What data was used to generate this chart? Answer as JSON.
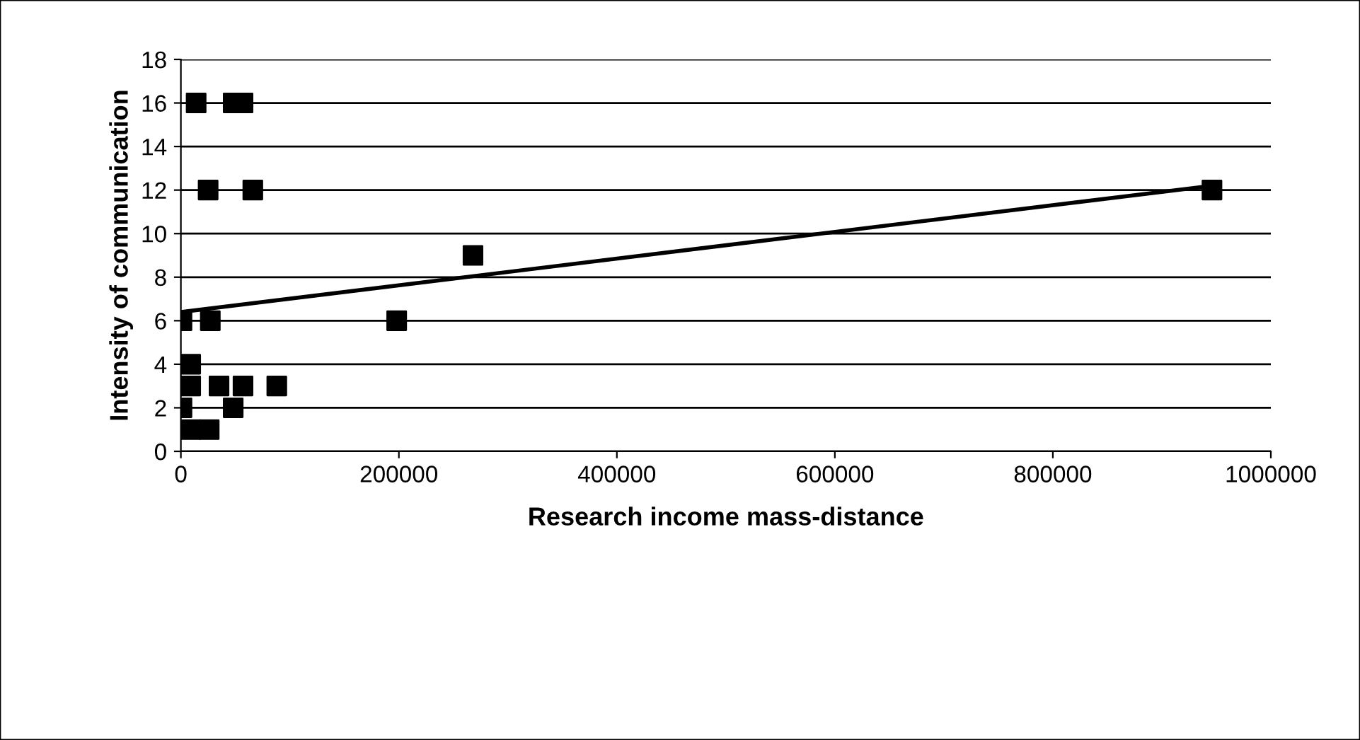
{
  "chart_data": {
    "type": "scatter",
    "xlabel": "Research income mass-distance",
    "ylabel": "Intensity of communication",
    "xlim": [
      0,
      1000000
    ],
    "xticks": [
      0,
      200000,
      400000,
      600000,
      800000,
      1000000
    ],
    "ylim": [
      0,
      18
    ],
    "yticks": [
      0,
      2,
      4,
      6,
      8,
      10,
      12,
      14,
      16,
      18
    ],
    "grid": "y",
    "series": [
      {
        "marker": "square",
        "color": "#000000",
        "x": [
          14000,
          48000,
          57000,
          25000,
          66000,
          1000,
          27000,
          198000,
          946000,
          268000,
          9000,
          9000,
          35000,
          57000,
          88000,
          1000,
          48000,
          9000,
          26000
        ],
        "values": [
          16,
          16,
          16,
          12,
          12,
          6,
          6,
          6,
          12,
          9,
          4,
          3,
          3,
          3,
          3,
          2,
          2,
          1,
          1
        ]
      },
      {
        "type": "line",
        "color": "#000000",
        "marker": "none",
        "x": [
          0,
          946000
        ],
        "values": [
          6.4,
          12.2
        ]
      }
    ]
  }
}
